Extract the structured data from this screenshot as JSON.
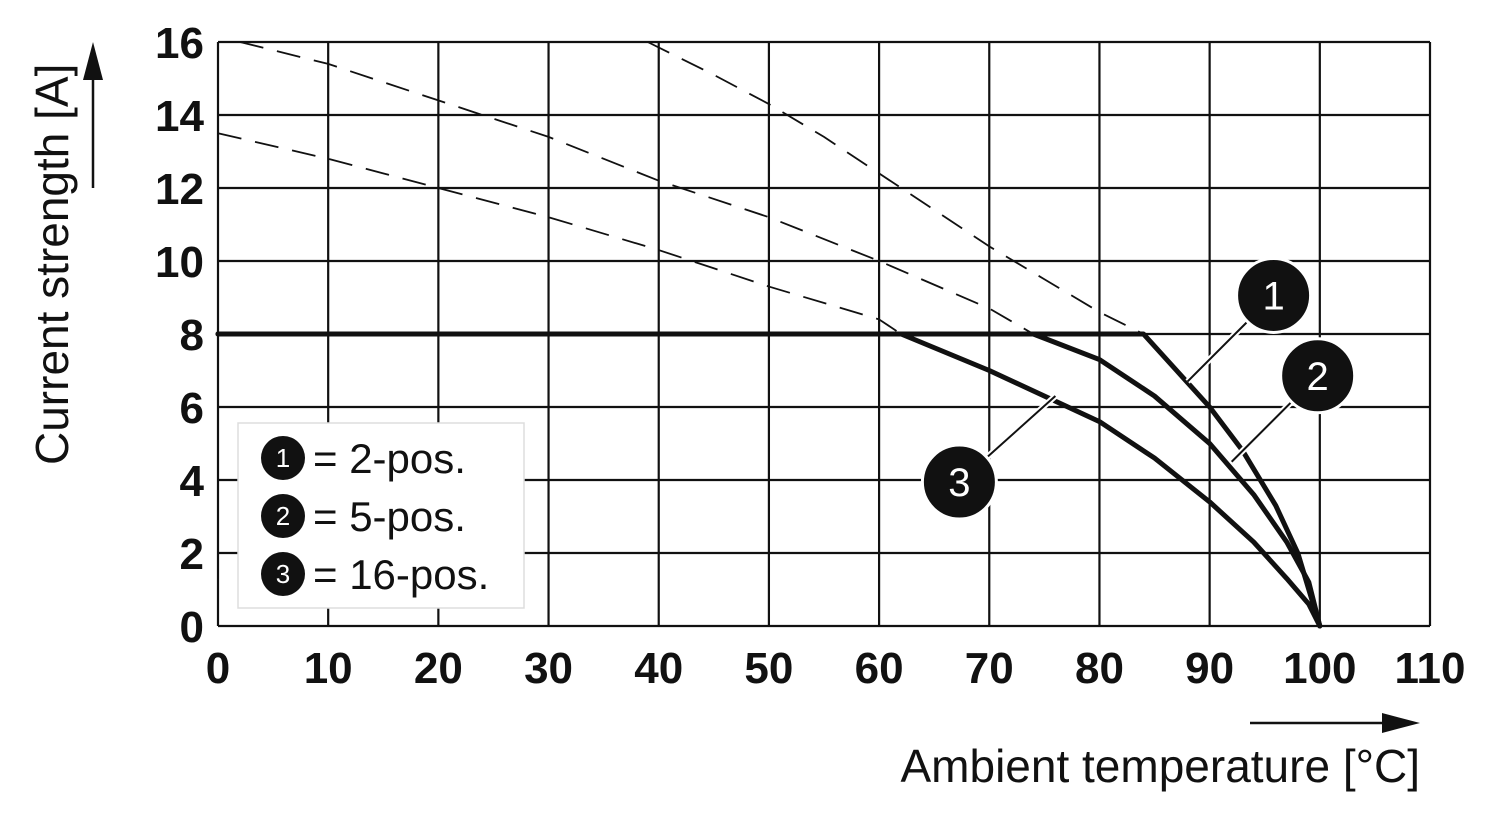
{
  "chart_data": {
    "type": "line",
    "xlabel": "Ambient temperature [°C]",
    "ylabel": "Current strength [A]",
    "xlim": [
      0,
      110
    ],
    "ylim": [
      0,
      16
    ],
    "xticks": [
      "0",
      "10",
      "20",
      "30",
      "40",
      "50",
      "60",
      "70",
      "80",
      "90",
      "100",
      "110"
    ],
    "yticks": [
      "0",
      "2",
      "4",
      "6",
      "8",
      "10",
      "12",
      "14",
      "16"
    ],
    "grid": true,
    "legend_position": "bottom-left",
    "line_color": "#111111",
    "series": [
      {
        "name": "2-pos.",
        "badge": "1",
        "rated_x": [
          0,
          10,
          20,
          30,
          40,
          50,
          60,
          70,
          80,
          84,
          87,
          90,
          93,
          96,
          98,
          100
        ],
        "rated_y": [
          8,
          8,
          8,
          8,
          8,
          8,
          8,
          8,
          8,
          8,
          7.0,
          6.0,
          4.8,
          3.3,
          2.0,
          0
        ],
        "extrapolated_x": [
          39,
          45,
          50,
          55,
          60,
          65,
          70,
          75,
          80,
          84
        ],
        "extrapolated_y": [
          16,
          15.1,
          14.3,
          13.4,
          12.4,
          11.4,
          10.4,
          9.5,
          8.6,
          8.0
        ]
      },
      {
        "name": "5-pos.",
        "badge": "2",
        "rated_x": [
          0,
          10,
          20,
          30,
          40,
          50,
          60,
          70,
          74,
          80,
          85,
          90,
          94,
          97,
          99,
          100
        ],
        "rated_y": [
          8,
          8,
          8,
          8,
          8,
          8,
          8,
          8,
          8,
          7.3,
          6.3,
          5.0,
          3.6,
          2.3,
          1.2,
          0
        ],
        "extrapolated_x": [
          2,
          10,
          20,
          30,
          40,
          50,
          60,
          70,
          74
        ],
        "extrapolated_y": [
          16,
          15.4,
          14.4,
          13.4,
          12.2,
          11.2,
          10.0,
          8.7,
          8.0
        ]
      },
      {
        "name": "16-pos.",
        "badge": "3",
        "rated_x": [
          0,
          10,
          20,
          30,
          40,
          50,
          60,
          62,
          70,
          80,
          85,
          90,
          94,
          97,
          99,
          100
        ],
        "rated_y": [
          8,
          8,
          8,
          8,
          8,
          8,
          8,
          8,
          7.0,
          5.6,
          4.6,
          3.4,
          2.3,
          1.3,
          0.6,
          0
        ],
        "extrapolated_x": [
          0,
          10,
          20,
          30,
          40,
          50,
          60,
          62
        ],
        "extrapolated_y": [
          13.5,
          12.8,
          12.0,
          11.2,
          10.3,
          9.3,
          8.4,
          8.0
        ]
      }
    ],
    "legend": [
      {
        "badge": "1",
        "text": "= 2-pos."
      },
      {
        "badge": "2",
        "text": "= 5-pos."
      },
      {
        "badge": "3",
        "text": "= 16-pos."
      }
    ],
    "callouts": [
      {
        "badge": "1",
        "series": 0,
        "point_x": 88,
        "point_y": 6.7,
        "side": "right"
      },
      {
        "badge": "2",
        "series": 1,
        "point_x": 92,
        "point_y": 4.5,
        "side": "right"
      },
      {
        "badge": "3",
        "series": 2,
        "point_x": 76,
        "point_y": 6.3,
        "side": "left"
      }
    ]
  }
}
